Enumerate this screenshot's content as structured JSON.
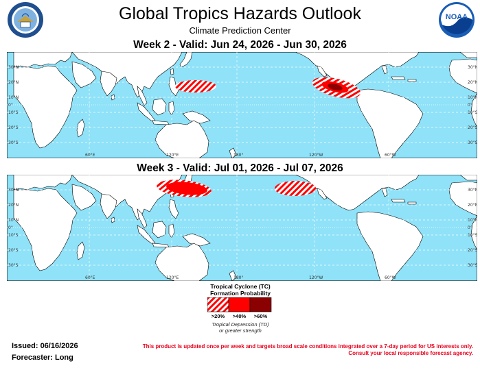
{
  "header": {
    "title": "Global Tropics Hazards Outlook",
    "subtitle": "Climate Prediction Center",
    "logo_left": "department-of-commerce-seal-icon",
    "logo_right": "noaa-logo-icon",
    "logo_right_text": "NOAA"
  },
  "weeks": [
    {
      "title": "Week 2 - Valid: Jun 24, 2026 - Jun 30, 2026"
    },
    {
      "title": "Week 3 - Valid: Jul 01, 2026 - Jul 07, 2026"
    }
  ],
  "map": {
    "ocean_color": "#8fe2f8",
    "land_color": "#ffffff",
    "coast_color": "#000000",
    "grid_color": "#ffffff",
    "lat_labels": [
      "30°N",
      "20°N",
      "10°N",
      "0°",
      "10°S",
      "20°S",
      "30°S"
    ],
    "lon_labels": [
      "60°E",
      "120°E",
      "180°",
      "120°W",
      "60°W"
    ]
  },
  "hazards": {
    "week2": [
      {
        "type": "tc",
        "probability": ">20%",
        "region": "western-pacific"
      },
      {
        "type": "tc",
        "probability": ">20%",
        "region": "eastern-pacific"
      },
      {
        "type": "tc",
        "probability": ">40%",
        "region": "eastern-pacific"
      },
      {
        "type": "tc",
        "probability": ">60%",
        "region": "eastern-pacific"
      }
    ],
    "week3": [
      {
        "type": "tc",
        "probability": ">20%",
        "region": "western-pacific"
      },
      {
        "type": "tc",
        "probability": ">40%",
        "region": "western-pacific"
      },
      {
        "type": "tc",
        "probability": ">20%",
        "region": "central-pacific"
      }
    ]
  },
  "legend": {
    "title_line1": "Tropical Cyclone (TC)",
    "title_line2": "Formation Probability",
    "labels": [
      ">20%",
      ">40%",
      ">60%"
    ],
    "colors": [
      "#ff0000",
      "#ff0000",
      "#8b0000"
    ],
    "note_line1": "Tropical Depression (TD)",
    "note_line2": "or greater strength"
  },
  "footer": {
    "issued": "Issued: 06/16/2026",
    "forecaster": "Forecaster: Long",
    "disclaimer_line1": "This product is updated once per week and targets broad scale conditions integrated over a 7-day period for US interests only.",
    "disclaimer_line2": "Consult your local responsible forecast agency."
  }
}
